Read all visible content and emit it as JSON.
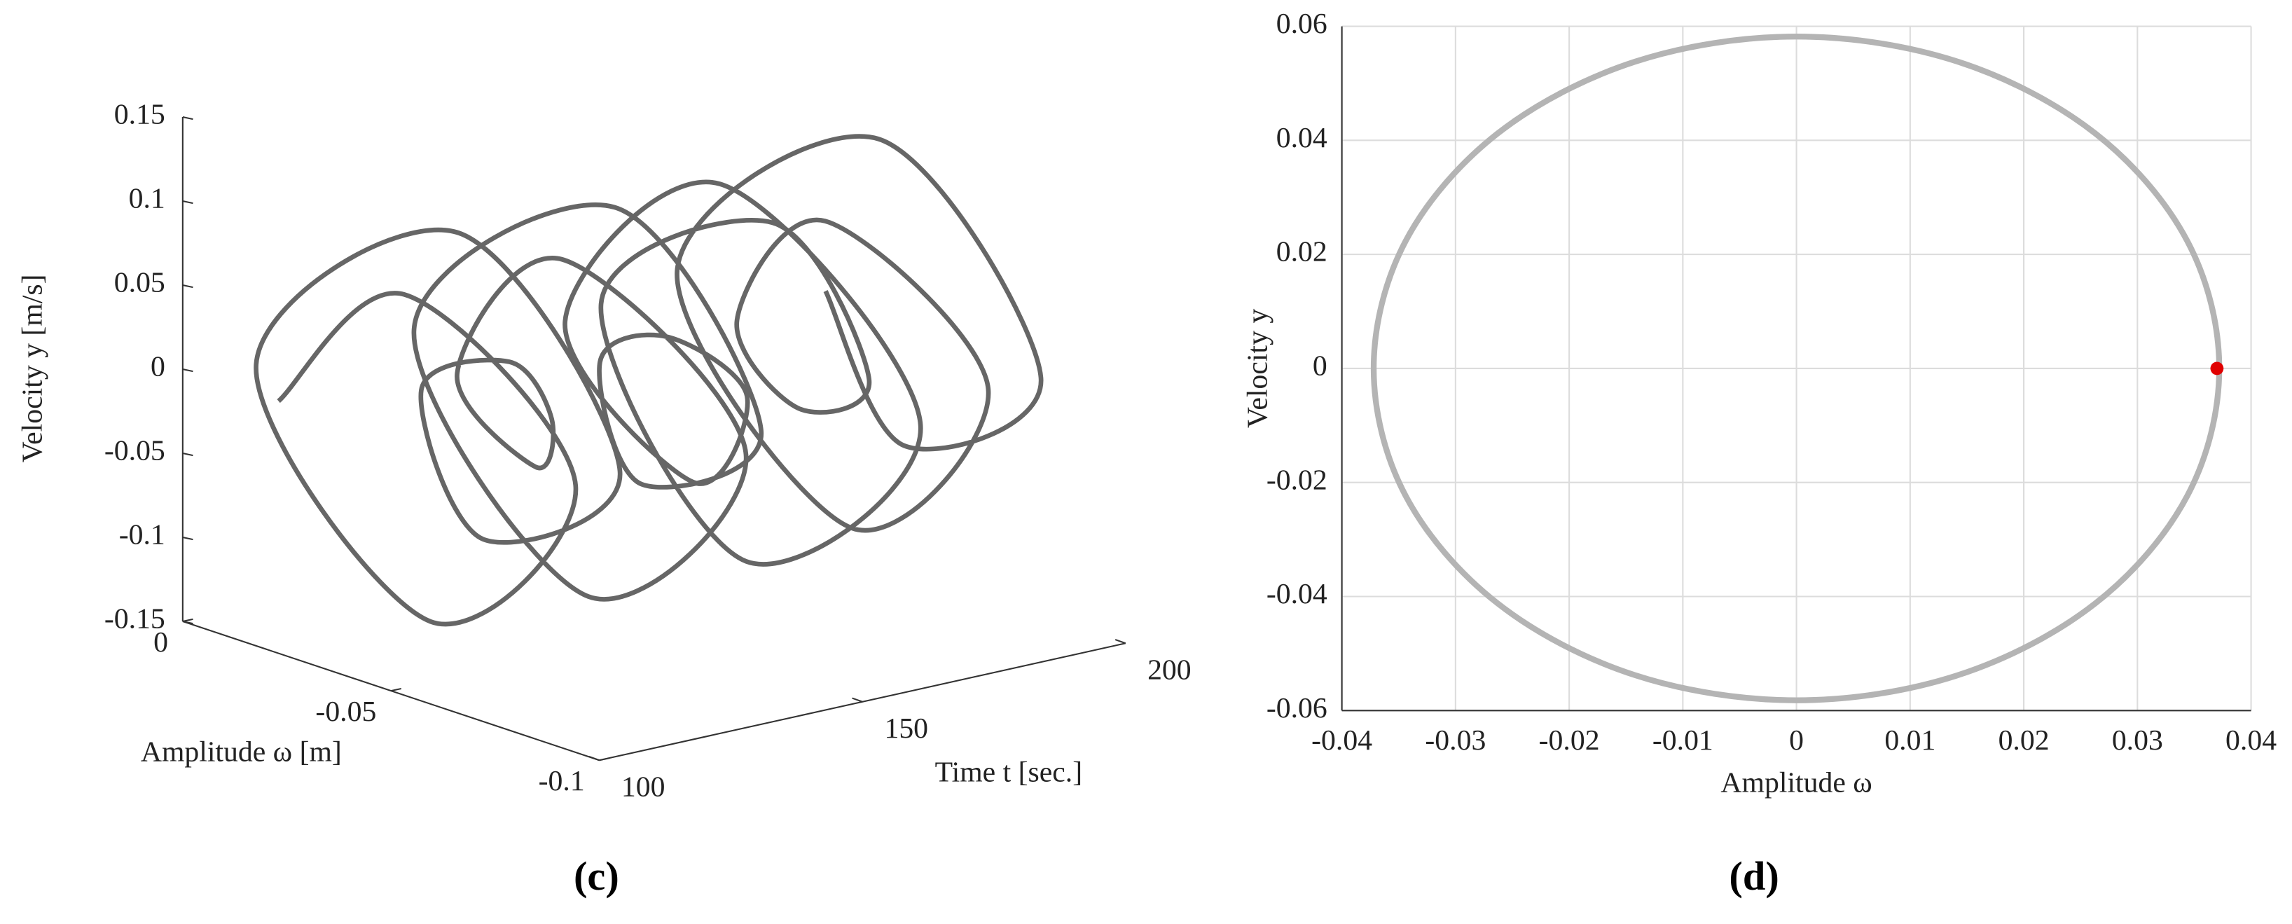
{
  "chart_data": [
    {
      "type": "line3d",
      "caption": "(c)",
      "xlabel": "Time t [sec.]",
      "ylabel": "Amplitude ω [m]",
      "zlabel": "Velocity y [m/s]",
      "xlim": [
        100,
        200
      ],
      "ylim": [
        -0.1,
        0
      ],
      "zlim": [
        -0.15,
        0.15
      ],
      "xticks": [
        100,
        150,
        200
      ],
      "yticks": [
        0,
        -0.05,
        -0.1
      ],
      "zticks": [
        0.15,
        0.1,
        0.05,
        0,
        -0.05,
        -0.1,
        -0.15
      ],
      "series": [
        {
          "color": "#666666",
          "x": [
            100,
            102.5,
            105,
            107.5,
            110,
            112.5,
            115,
            117.5,
            120,
            122.5,
            125,
            127.5,
            130,
            132.5,
            135,
            137.5,
            140,
            142.5,
            145,
            147.5,
            150,
            152.5,
            155,
            157.5,
            160,
            162.5,
            165,
            167.5,
            170,
            172.5,
            175,
            177.5,
            180,
            182.5,
            185,
            187.5,
            190,
            192.5,
            195,
            197.5,
            200
          ],
          "y": [
            -0.023,
            -0.05,
            -0.088,
            -0.05,
            -0.005,
            -0.05,
            -0.086,
            -0.05,
            -0.032,
            -0.05,
            -0.057,
            -0.05,
            -0.028,
            -0.05,
            -0.091,
            -0.05,
            -0.005,
            -0.05,
            -0.082,
            -0.05,
            -0.037,
            -0.05,
            -0.066,
            -0.05,
            -0.016,
            -0.05,
            -0.095,
            -0.05,
            -0.012,
            -0.05,
            -0.07,
            -0.05,
            -0.032,
            -0.05,
            -0.086,
            -0.05,
            -0.005,
            -0.05,
            -0.086,
            -0.05,
            -0.028
          ],
          "z": [
            0,
            0.084,
            0,
            -0.114,
            0,
            0.114,
            0,
            -0.072,
            0,
            0.03,
            0,
            -0.036,
            0,
            0.084,
            0,
            -0.12,
            0,
            0.108,
            0,
            -0.06,
            0,
            0.024,
            0,
            -0.066,
            0,
            0.108,
            0,
            -0.12,
            0,
            0.078,
            0,
            -0.036,
            0,
            0.072,
            0,
            -0.114,
            0,
            0.114,
            0,
            -0.072,
            0
          ]
        }
      ]
    },
    {
      "type": "line",
      "caption": "(d)",
      "xlabel": "Amplitude ω",
      "ylabel": "Velocity y",
      "xlim": [
        -0.04,
        0.04
      ],
      "ylim": [
        -0.06,
        0.06
      ],
      "xticks": [
        -0.04,
        -0.03,
        -0.02,
        -0.01,
        0,
        0.01,
        0.02,
        0.03,
        0.04
      ],
      "yticks": [
        -0.06,
        -0.04,
        -0.02,
        0,
        0.02,
        0.04,
        0.06
      ],
      "grid": true,
      "x": [
        0.0372,
        0.0344,
        0.0263,
        0.0142,
        0,
        -0.0142,
        -0.0263,
        -0.0344,
        -0.0372,
        -0.0344,
        -0.0263,
        -0.0142,
        0,
        0.0142,
        0.0263,
        0.0344,
        0.0372
      ],
      "series": [
        {
          "color": "#b4b4b4",
          "values": [
            0,
            0.0223,
            0.0412,
            0.0538,
            0.0582,
            0.0538,
            0.0412,
            0.0223,
            0,
            -0.0223,
            -0.0412,
            -0.0538,
            -0.0582,
            -0.0538,
            -0.0412,
            -0.0223,
            0
          ]
        }
      ],
      "marker": {
        "x": 0.037,
        "y": 0,
        "color": "#e00000"
      }
    }
  ]
}
